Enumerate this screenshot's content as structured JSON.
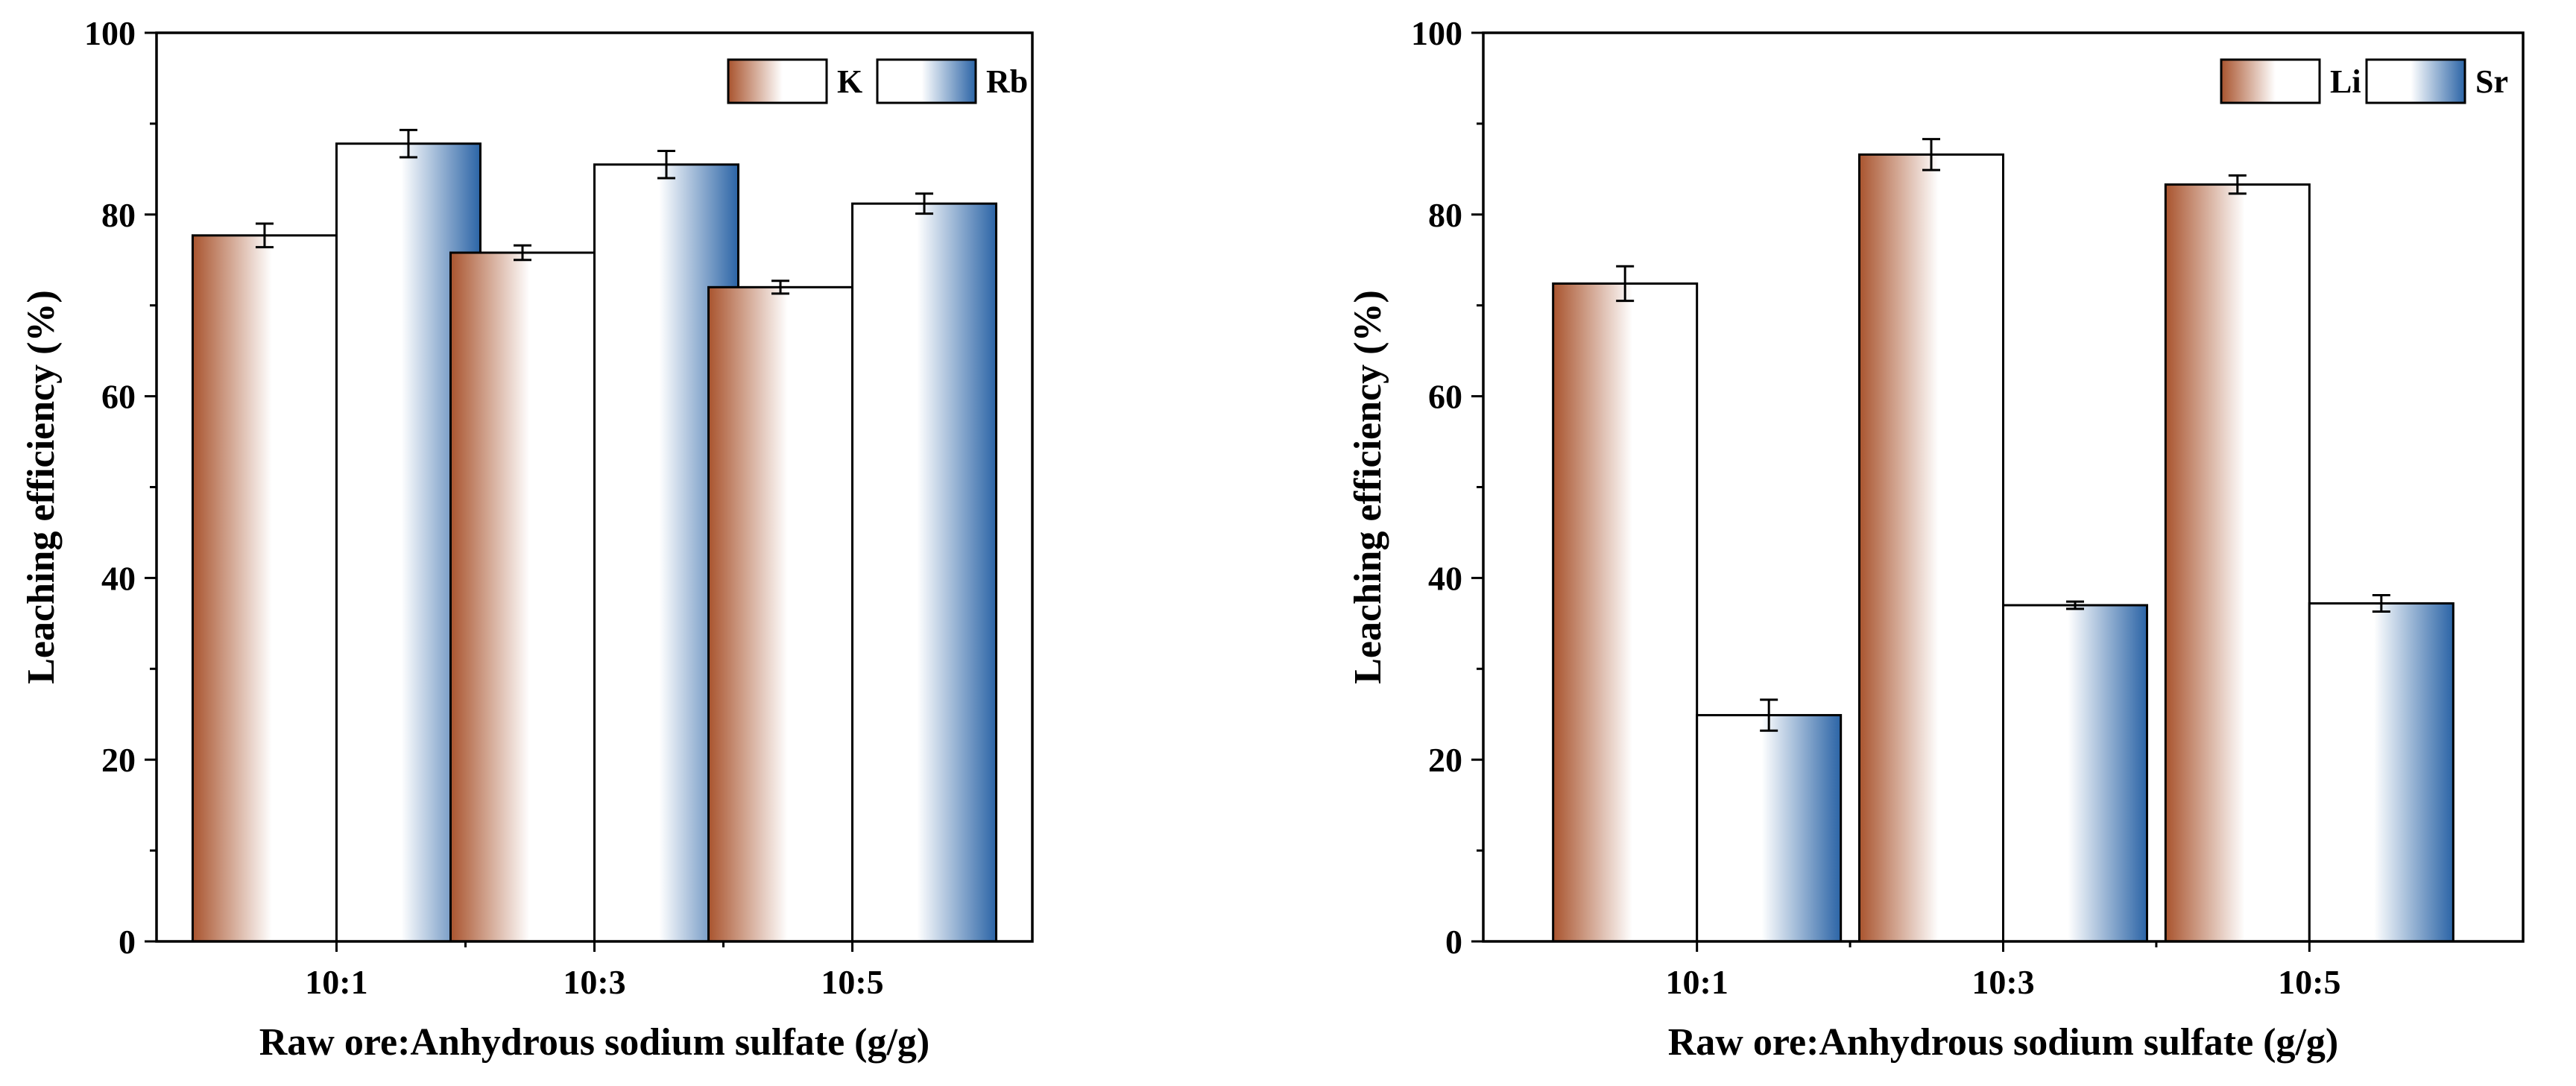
{
  "colors": {
    "brown": "#a9542e",
    "blue": "#2b64a6",
    "highlight": "#ffffff",
    "axis": "#000000"
  },
  "chart_data": [
    {
      "type": "bar",
      "categories": [
        "10:1",
        "10:3",
        "10:5"
      ],
      "series": [
        {
          "name": "K",
          "color": "brown",
          "values": [
            77.7,
            75.8,
            72.0
          ],
          "errors": [
            1.3,
            0.8,
            0.7
          ]
        },
        {
          "name": "Rb",
          "color": "blue",
          "values": [
            87.8,
            85.5,
            81.2
          ],
          "errors": [
            1.5,
            1.5,
            1.1
          ]
        }
      ],
      "xlabel": "Raw ore:Anhydrous sodium sulfate (g/g)",
      "ylabel": "Leaching efficiency (%)",
      "ylim": [
        0,
        100
      ],
      "yticks": [
        0,
        20,
        40,
        60,
        80,
        100
      ],
      "ytick_labels": [
        "0",
        "20",
        "40",
        "60",
        "80",
        "100"
      ],
      "grid": false,
      "legend_position": "top-right"
    },
    {
      "type": "bar",
      "categories": [
        "10:1",
        "10:3",
        "10:5"
      ],
      "series": [
        {
          "name": "Li",
          "color": "brown",
          "values": [
            72.4,
            86.6,
            83.3
          ],
          "errors": [
            1.9,
            1.7,
            1.0
          ]
        },
        {
          "name": "Sr",
          "color": "blue",
          "values": [
            24.9,
            37.0,
            37.2
          ],
          "errors": [
            1.7,
            0.4,
            0.9
          ]
        }
      ],
      "xlabel": "Raw ore:Anhydrous sodium sulfate (g/g)",
      "ylabel": "Leaching efficiency (%)",
      "ylim": [
        0,
        100
      ],
      "yticks": [
        0,
        20,
        40,
        60,
        80,
        100
      ],
      "ytick_labels": [
        "0",
        "20",
        "40",
        "60",
        "80",
        "100"
      ],
      "grid": false,
      "legend_position": "top-right"
    }
  ]
}
